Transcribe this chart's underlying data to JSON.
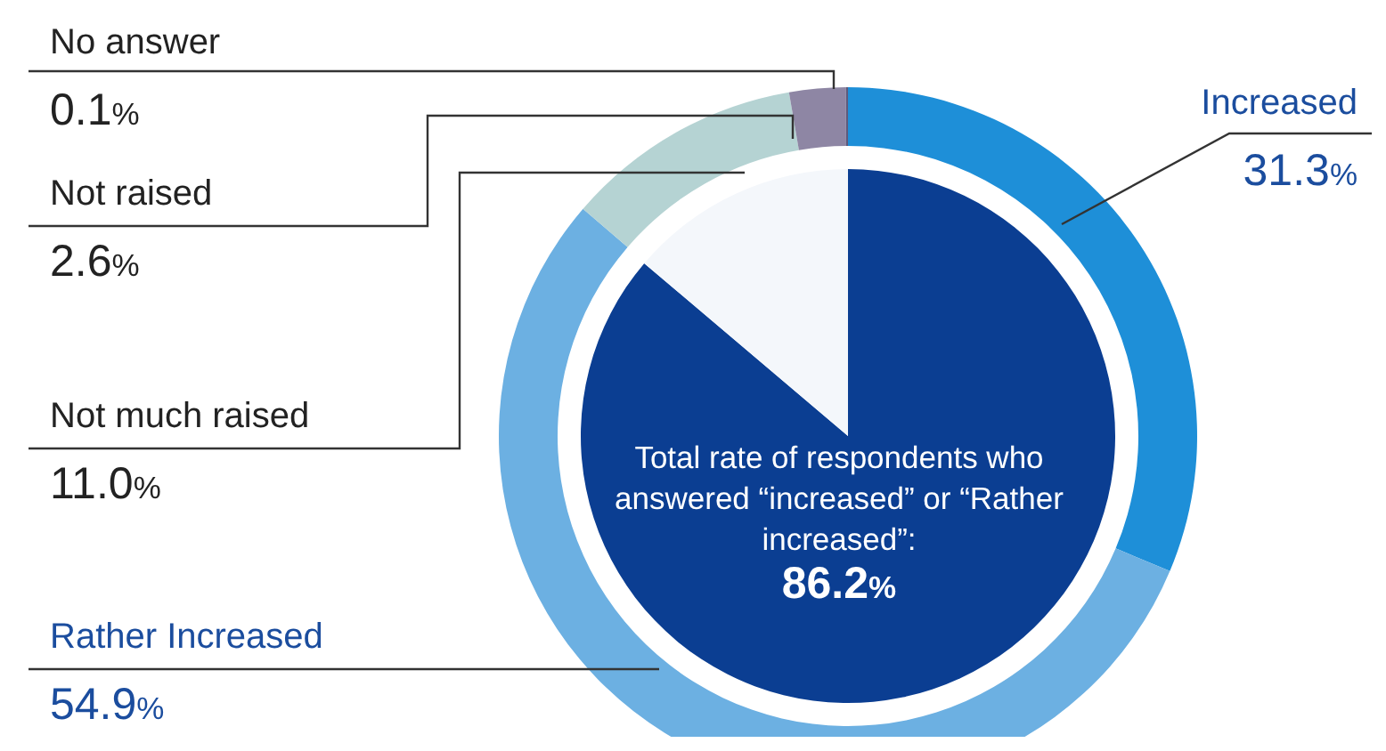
{
  "chart_data": [
    {
      "type": "donut",
      "categories": [
        "Increased",
        "Rather Increased",
        "Not much raised",
        "Not raised",
        "No answer"
      ],
      "values": [
        31.3,
        54.9,
        11.0,
        2.6,
        0.1
      ],
      "value_labels": [
        "31.3%",
        "54.9%",
        "11.0%",
        "2.6%",
        "0.1%"
      ],
      "colors": [
        "#1e8fd8",
        "#6cb0e2",
        "#b5d3d3",
        "#8e86a4",
        "#5e5a7c"
      ]
    },
    {
      "type": "pie",
      "categories": [
        null,
        null
      ],
      "values": [
        86.2,
        13.8
      ],
      "colors": [
        "#0b3e92",
        "#f4f7fb"
      ],
      "annotations": [
        "Total rate of respondents who answered “increased” or “Rather increased”: 86.2%"
      ]
    }
  ]
}
